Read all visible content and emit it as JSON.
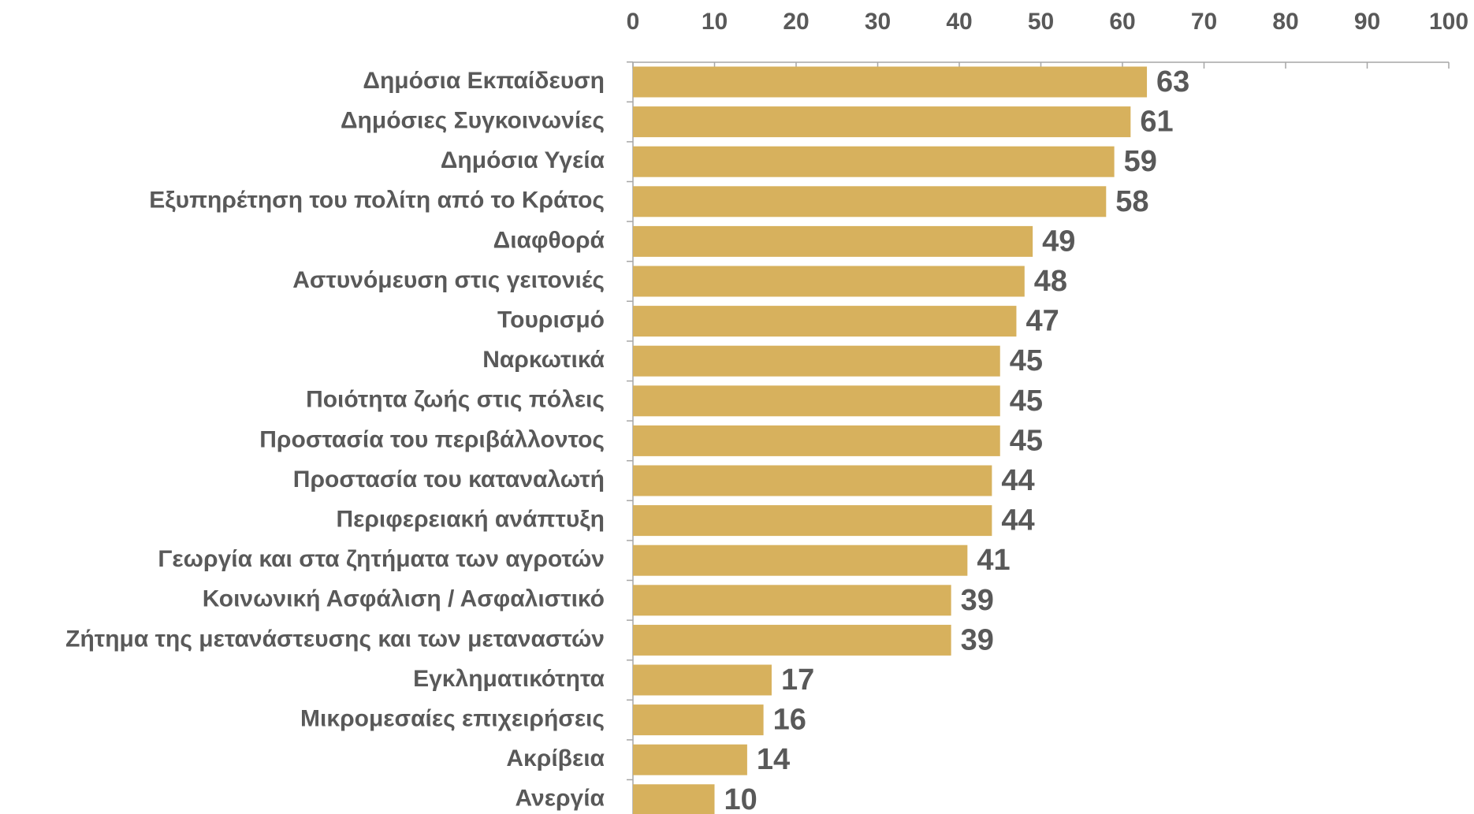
{
  "chart_data": {
    "type": "bar",
    "orientation": "horizontal",
    "categories": [
      "Δημόσια Εκπαίδευση",
      "Δημόσιες Συγκοινωνίες",
      "Δημόσια Υγεία",
      "Εξυπηρέτηση του πολίτη από το Κράτος",
      "Διαφθορά",
      "Αστυνόμευση στις γειτονιές",
      "Τουρισμό",
      "Ναρκωτικά",
      "Ποιότητα ζωής στις πόλεις",
      "Προστασία του περιβάλλοντος",
      "Προστασία του καταναλωτή",
      "Περιφερειακή ανάπτυξη",
      "Γεωργία και στα ζητήματα των αγροτών",
      "Κοινωνική Ασφάλιση / Ασφαλιστικό",
      "Ζήτημα της μετανάστευσης και των μεταναστών",
      "Εγκληματικότητα",
      "Μικρομεσαίες επιχειρήσεις",
      "Ακρίβεια",
      "Ανεργία"
    ],
    "values": [
      63,
      61,
      59,
      58,
      49,
      48,
      47,
      45,
      45,
      45,
      44,
      44,
      41,
      39,
      39,
      17,
      16,
      14,
      10
    ],
    "color": "#d7b15d",
    "xlim": [
      0,
      100
    ],
    "xticks": [
      0,
      10,
      20,
      30,
      40,
      50,
      60,
      70,
      80,
      90,
      100
    ]
  }
}
